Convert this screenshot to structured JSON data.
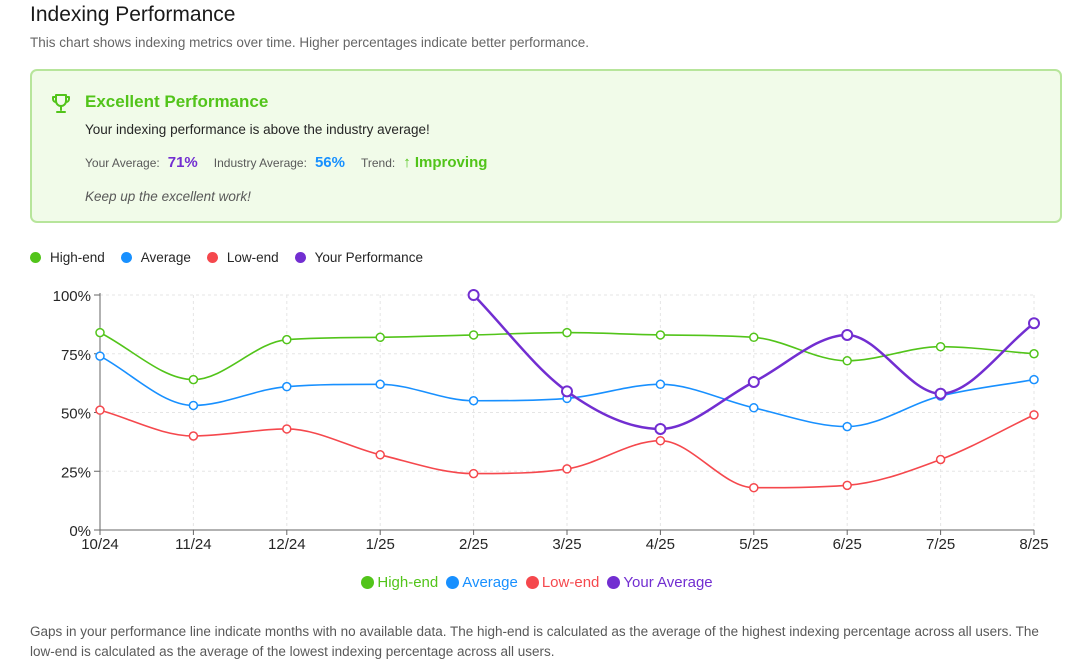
{
  "header": {
    "title": "Indexing Performance",
    "subtitle": "This chart shows indexing metrics over time. Higher percentages indicate better performance."
  },
  "summary": {
    "icon": "trophy-icon",
    "heading": "Excellent Performance",
    "message": "Your indexing performance is above the industry average!",
    "your_average_label": "Your Average:",
    "your_average_value": "71%",
    "industry_average_label": "Industry Average:",
    "industry_average_value": "56%",
    "trend_label": "Trend:",
    "trend_value": "↑ Improving",
    "note": "Keep up the excellent work!"
  },
  "colors": {
    "high_end": "#52c41a",
    "average": "#1890ff",
    "low_end": "#f5484d",
    "your": "#722ed1"
  },
  "legend_top": [
    {
      "label": "High-end",
      "color": "#52c41a"
    },
    {
      "label": "Average",
      "color": "#1890ff"
    },
    {
      "label": "Low-end",
      "color": "#f5484d"
    },
    {
      "label": "Your Performance",
      "color": "#722ed1"
    }
  ],
  "legend_bottom": [
    {
      "label": "High-end",
      "color": "#52c41a"
    },
    {
      "label": "Average",
      "color": "#1890ff"
    },
    {
      "label": "Low-end",
      "color": "#f5484d"
    },
    {
      "label": "Your Average",
      "color": "#722ed1"
    }
  ],
  "chart_data": {
    "type": "line",
    "title": "Indexing Performance",
    "xlabel": "",
    "ylabel": "",
    "ylim": [
      0,
      100
    ],
    "yticks": [
      "0%",
      "25%",
      "50%",
      "75%",
      "100%"
    ],
    "yticks_values": [
      0,
      25,
      50,
      75,
      100
    ],
    "grid": true,
    "categories": [
      "10/24",
      "11/24",
      "12/24",
      "1/25",
      "2/25",
      "3/25",
      "4/25",
      "5/25",
      "6/25",
      "7/25",
      "8/25"
    ],
    "series": [
      {
        "name": "High-end",
        "key": "high_end",
        "values": [
          84,
          64,
          81,
          82,
          83,
          84,
          83,
          82,
          72,
          78,
          75
        ]
      },
      {
        "name": "Average",
        "key": "average",
        "values": [
          74,
          53,
          61,
          62,
          55,
          56,
          62,
          52,
          44,
          57,
          64
        ]
      },
      {
        "name": "Low-end",
        "key": "low_end",
        "values": [
          51,
          40,
          43,
          32,
          24,
          26,
          38,
          18,
          19,
          30,
          49
        ]
      },
      {
        "name": "Your Performance",
        "key": "your",
        "values": [
          null,
          null,
          null,
          null,
          100,
          59,
          43,
          63,
          83,
          58,
          88
        ]
      }
    ]
  },
  "footnote": "Gaps in your performance line indicate months with no available data. The high-end is calculated as the average of the highest indexing percentage across all users. The low-end is calculated as the average of the lowest indexing percentage across all users."
}
